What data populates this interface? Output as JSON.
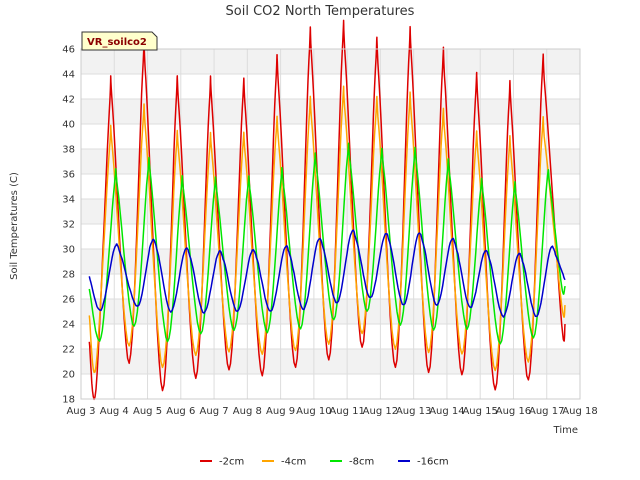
{
  "chart_data": {
    "type": "line",
    "title": "Soil CO2 North Temperatures",
    "xlabel": "Time",
    "ylabel": "Soil Temperatures (C)",
    "badge": "VR_soilco2",
    "ylim": [
      18,
      46
    ],
    "yticks": [
      18,
      20,
      22,
      24,
      26,
      28,
      30,
      32,
      34,
      36,
      38,
      40,
      42,
      44,
      46
    ],
    "xlim": [
      0,
      15
    ],
    "xticks": [
      "Aug 3",
      "Aug 4",
      "Aug 5",
      "Aug 6",
      "Aug 7",
      "Aug 8",
      "Aug 9",
      "Aug 10",
      "Aug 11",
      "Aug 12",
      "Aug 13",
      "Aug 14",
      "Aug 15",
      "Aug 16",
      "Aug 17",
      "Aug 18"
    ],
    "grid": true,
    "legend_position": "bottom",
    "series": [
      {
        "name": "-2cm",
        "color": "#dd0000",
        "x": [
          0.25,
          0.45,
          0.85,
          0.95,
          1.45,
          1.85,
          1.95,
          2.45,
          2.85,
          2.95,
          3.45,
          3.85,
          3.95,
          4.45,
          4.85,
          4.95,
          5.45,
          5.85,
          5.95,
          6.45,
          6.85,
          6.95,
          7.45,
          7.85,
          7.95,
          8.45,
          8.85,
          8.95,
          9.45,
          9.85,
          9.95,
          10.45,
          10.85,
          10.95,
          11.45,
          11.85,
          11.95,
          12.45,
          12.85,
          12.95,
          13.45,
          13.85,
          13.95,
          14.45,
          14.55
        ],
        "y": [
          22.6,
          18.8,
          41.0,
          41.3,
          20.9,
          43.9,
          43.5,
          18.7,
          41.3,
          41.0,
          19.7,
          41.3,
          41.0,
          20.3,
          41.3,
          40.8,
          19.9,
          43.0,
          42.5,
          20.5,
          45.1,
          44.5,
          21.1,
          45.6,
          45.0,
          22.1,
          44.4,
          43.8,
          20.5,
          45.0,
          44.5,
          20.1,
          43.5,
          42.9,
          19.9,
          41.7,
          41.0,
          18.7,
          41.0,
          40.5,
          19.5,
          43.2,
          42.7,
          24.0,
          24.0
        ]
      },
      {
        "name": "-4cm",
        "color": "#ffa500",
        "x": [
          0.25,
          0.45,
          0.85,
          0.95,
          1.45,
          1.85,
          1.95,
          2.45,
          2.85,
          2.95,
          3.45,
          3.85,
          3.95,
          4.45,
          4.85,
          4.95,
          5.45,
          5.85,
          5.95,
          6.45,
          6.85,
          6.95,
          7.45,
          7.85,
          7.95,
          8.45,
          8.85,
          8.95,
          9.45,
          9.85,
          9.95,
          10.45,
          10.85,
          10.95,
          11.45,
          11.85,
          11.95,
          12.45,
          12.85,
          12.95,
          13.45,
          13.85,
          13.95,
          14.45,
          14.55
        ],
        "y": [
          24.7,
          20.6,
          37.8,
          37.9,
          22.2,
          39.5,
          39.2,
          20.5,
          37.5,
          37.3,
          21.5,
          37.5,
          37.2,
          21.8,
          37.6,
          37.2,
          21.6,
          38.7,
          38.3,
          21.9,
          40.2,
          39.7,
          22.4,
          41.0,
          40.5,
          23.2,
          40.2,
          39.8,
          22.0,
          40.5,
          40.0,
          21.7,
          39.3,
          38.8,
          21.6,
          37.6,
          37.1,
          20.3,
          37.2,
          36.8,
          21.0,
          38.8,
          38.4,
          25.5,
          25.5
        ]
      },
      {
        "name": "-8cm",
        "color": "#00e600",
        "x": [
          0.25,
          0.6,
          1.0,
          1.1,
          1.6,
          2.0,
          2.1,
          2.6,
          3.0,
          3.1,
          3.6,
          4.0,
          4.1,
          4.6,
          5.0,
          5.1,
          5.6,
          6.0,
          6.1,
          6.6,
          7.0,
          7.1,
          7.6,
          8.0,
          8.1,
          8.6,
          9.0,
          9.1,
          9.6,
          10.0,
          10.1,
          10.6,
          11.0,
          11.1,
          11.6,
          12.0,
          12.1,
          12.6,
          13.0,
          13.1,
          13.6,
          14.0,
          14.1,
          14.45,
          14.55
        ],
        "y": [
          26.8,
          22.9,
          35.0,
          34.9,
          23.8,
          35.9,
          35.6,
          22.6,
          34.5,
          34.3,
          23.2,
          34.5,
          34.2,
          23.5,
          34.6,
          34.3,
          23.3,
          35.2,
          34.9,
          23.6,
          36.3,
          36.0,
          24.3,
          37.1,
          36.7,
          25.0,
          36.7,
          36.4,
          23.9,
          36.7,
          36.4,
          23.5,
          35.8,
          35.5,
          23.6,
          34.4,
          34.1,
          22.4,
          34.1,
          33.8,
          22.9,
          35.2,
          34.9,
          27.0,
          27.0
        ]
      },
      {
        "name": "-16cm",
        "color": "#0000cc",
        "x": [
          0.25,
          0.6,
          1.0,
          1.2,
          1.7,
          2.1,
          2.3,
          2.7,
          3.1,
          3.3,
          3.7,
          4.1,
          4.3,
          4.7,
          5.1,
          5.3,
          5.7,
          6.1,
          6.3,
          6.7,
          7.1,
          7.3,
          7.7,
          8.1,
          8.3,
          8.7,
          9.1,
          9.3,
          9.7,
          10.1,
          10.3,
          10.7,
          11.1,
          11.3,
          11.7,
          12.1,
          12.3,
          12.7,
          13.1,
          13.3,
          13.7,
          14.1,
          14.3,
          14.55
        ],
        "y": [
          27.8,
          25.1,
          30.0,
          29.5,
          25.4,
          30.4,
          29.8,
          25.0,
          29.7,
          29.2,
          24.9,
          29.5,
          29.0,
          25.0,
          29.6,
          29.1,
          25.0,
          29.9,
          29.3,
          25.2,
          30.5,
          29.9,
          25.7,
          31.1,
          30.5,
          26.1,
          30.9,
          30.3,
          25.5,
          30.9,
          30.3,
          25.5,
          30.5,
          29.9,
          25.3,
          29.6,
          29.0,
          24.6,
          29.3,
          28.8,
          24.6,
          29.9,
          29.3,
          27.5
        ]
      }
    ]
  }
}
